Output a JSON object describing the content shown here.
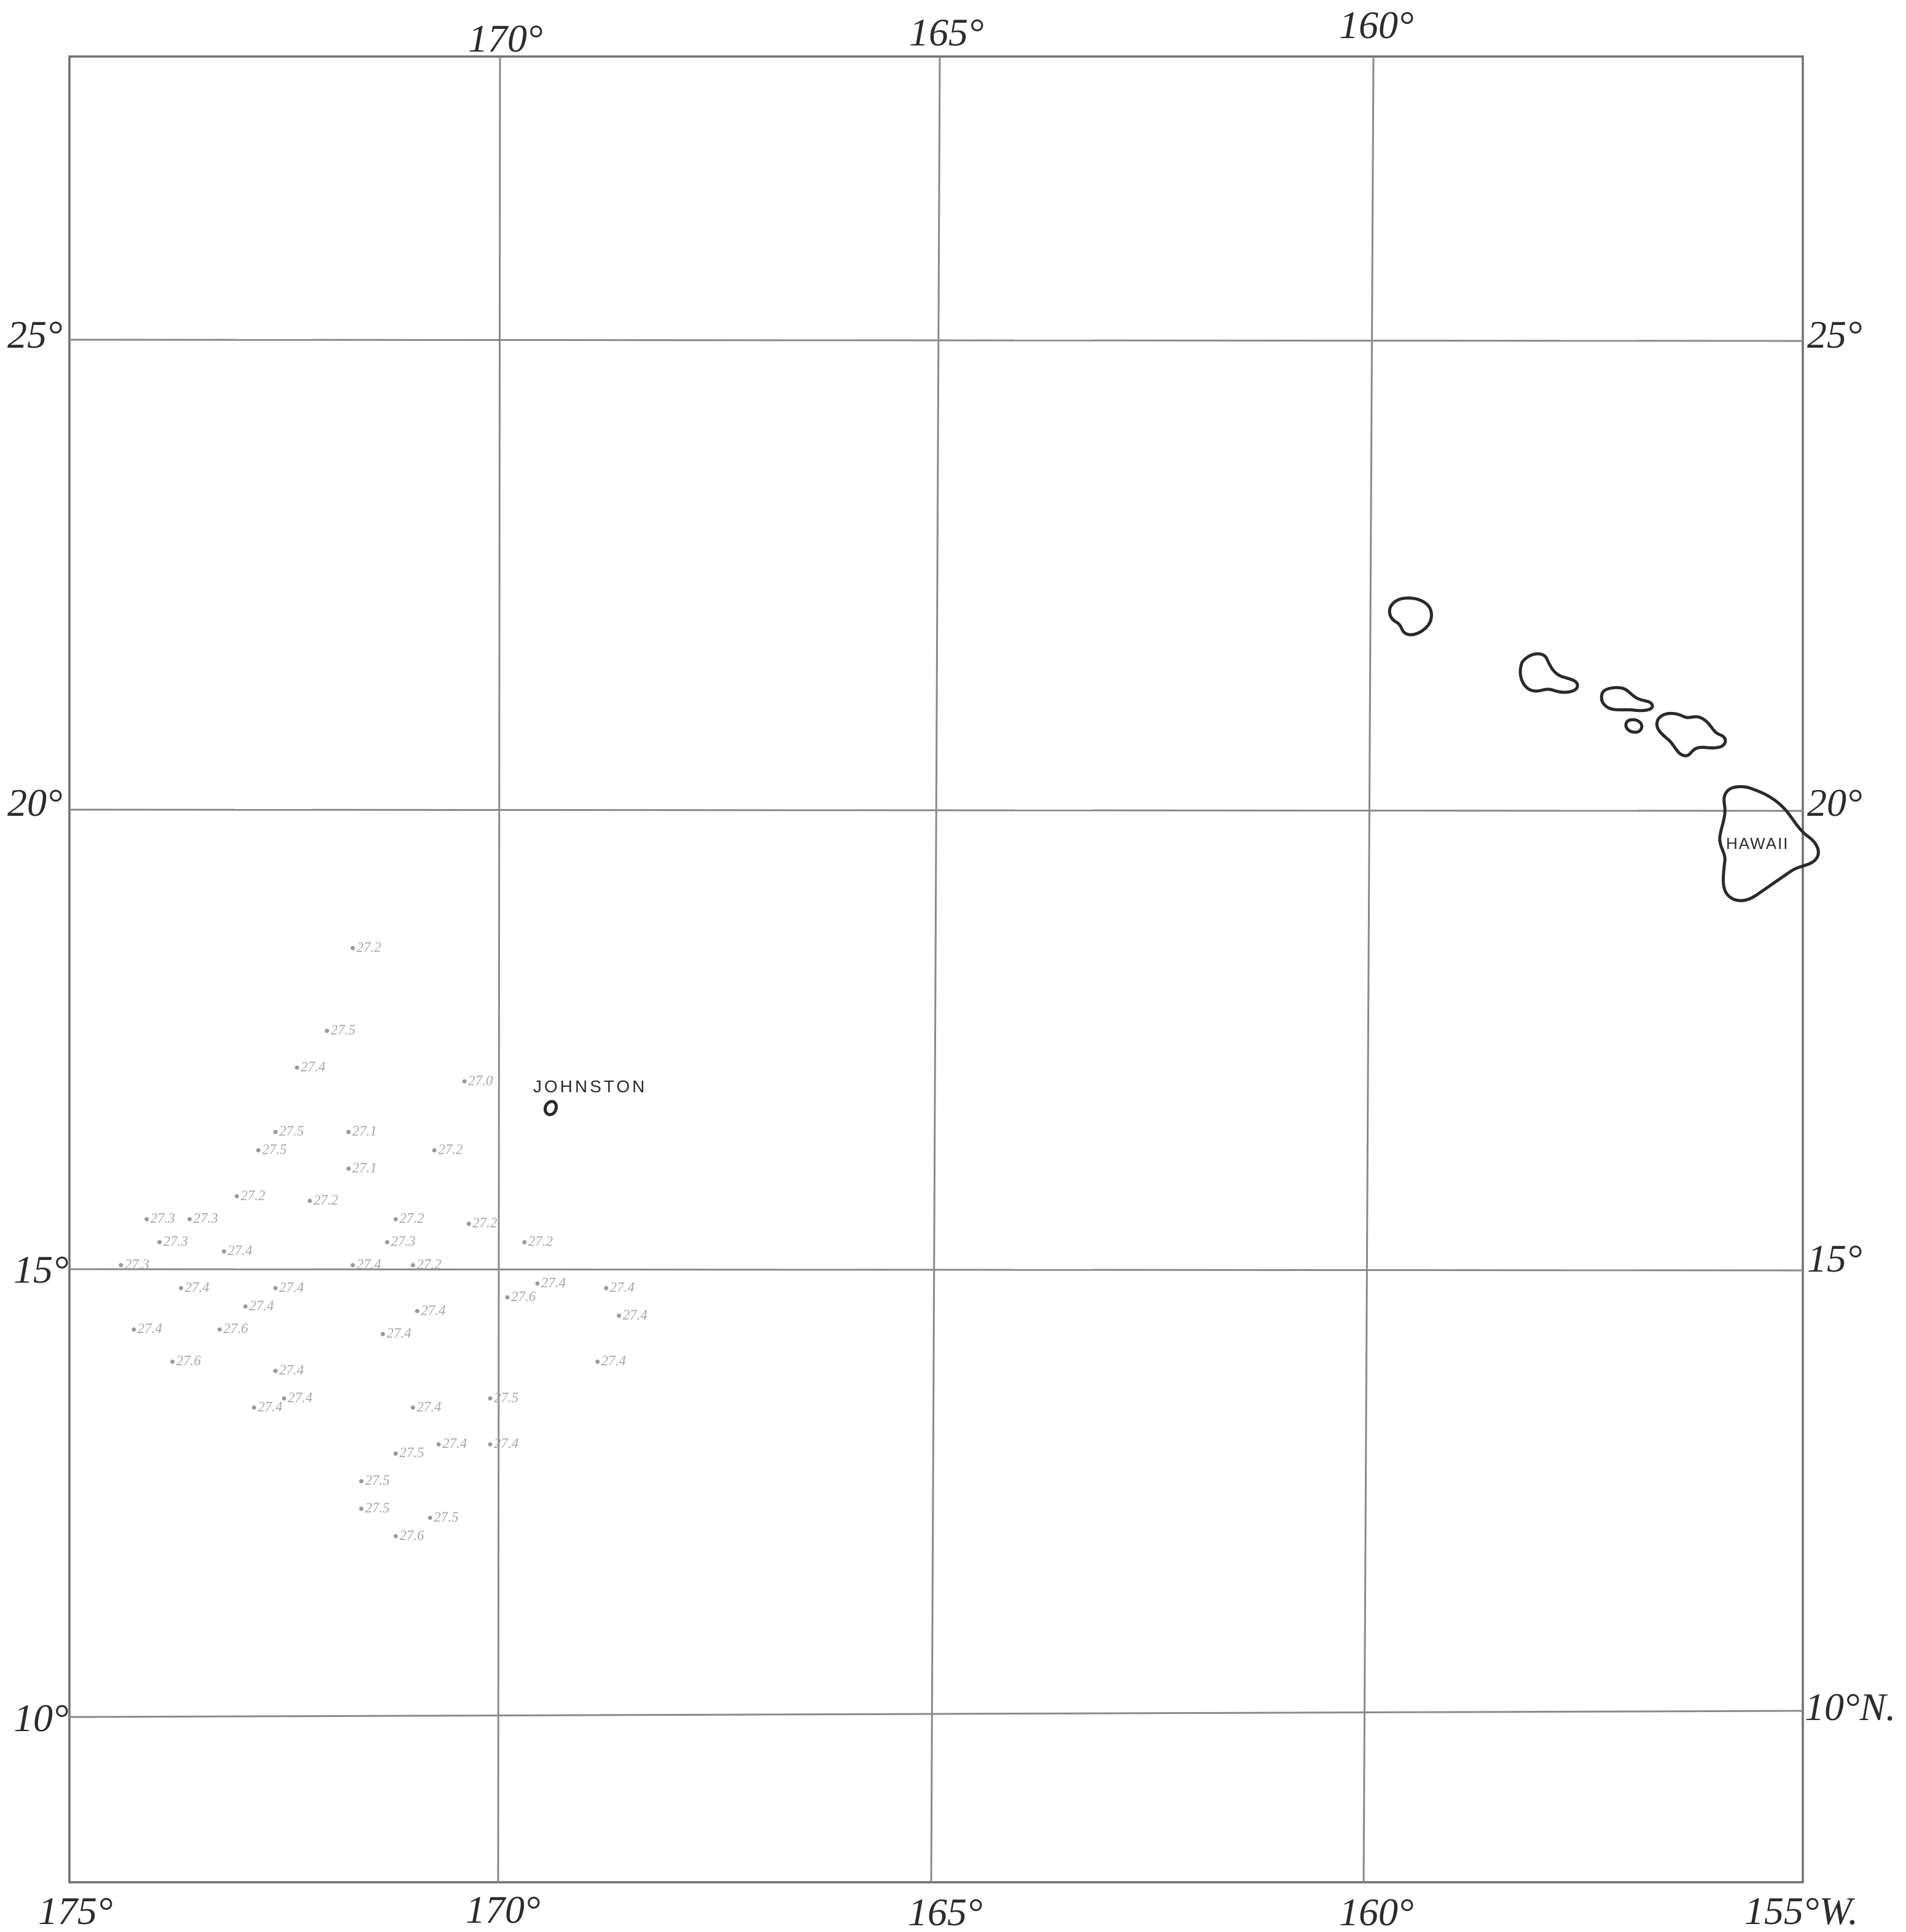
{
  "map": {
    "longitude_labels_top": [
      "170°",
      "165°",
      "160°"
    ],
    "longitude_labels_bottom": [
      "175°",
      "170°",
      "165°",
      "160°",
      "155°W."
    ],
    "latitude_labels_left": [
      "25°",
      "20°",
      "15°",
      "10°"
    ],
    "latitude_labels_right": [
      "25°",
      "20°",
      "15°",
      "10°N."
    ],
    "grid": {
      "longitudes": [
        -175,
        -170,
        -165,
        -160,
        -155
      ],
      "latitudes": [
        25,
        20,
        15,
        10
      ]
    },
    "places": {
      "johnston": {
        "label": "JOHNSTON",
        "lon": -169.5,
        "lat": 16.75
      },
      "hawaii": {
        "label": "HAWAII",
        "lon": -155.5,
        "lat": 19.6
      }
    },
    "islands": [
      "kauai",
      "oahu",
      "molokai",
      "lanai",
      "maui",
      "hawaii",
      "johnston"
    ],
    "observations": [
      {
        "lon": -171.7,
        "lat": 18.5,
        "text": "27.2"
      },
      {
        "lon": -172.0,
        "lat": 17.6,
        "text": "27.5"
      },
      {
        "lon": -172.35,
        "lat": 17.2,
        "text": "27.4"
      },
      {
        "lon": -172.6,
        "lat": 16.5,
        "text": "27.5"
      },
      {
        "lon": -171.75,
        "lat": 16.5,
        "text": "27.1"
      },
      {
        "lon": -172.8,
        "lat": 16.3,
        "text": "27.5"
      },
      {
        "lon": -171.75,
        "lat": 16.1,
        "text": "27.1"
      },
      {
        "lon": -170.75,
        "lat": 16.3,
        "text": "27.2"
      },
      {
        "lon": -170.4,
        "lat": 17.05,
        "text": "27.0"
      },
      {
        "lon": -173.05,
        "lat": 15.8,
        "text": "27.2"
      },
      {
        "lon": -172.2,
        "lat": 15.75,
        "text": "27.2"
      },
      {
        "lon": -173.6,
        "lat": 15.55,
        "text": "27.3"
      },
      {
        "lon": -171.2,
        "lat": 15.55,
        "text": "27.2"
      },
      {
        "lon": -170.35,
        "lat": 15.5,
        "text": "27.2"
      },
      {
        "lon": -173.95,
        "lat": 15.3,
        "text": "27.3"
      },
      {
        "lon": -171.3,
        "lat": 15.3,
        "text": "27.3"
      },
      {
        "lon": -174.4,
        "lat": 15.05,
        "text": "27.3"
      },
      {
        "lon": -173.2,
        "lat": 15.2,
        "text": "27.4"
      },
      {
        "lon": -171.7,
        "lat": 15.05,
        "text": "27.4"
      },
      {
        "lon": -171.0,
        "lat": 15.05,
        "text": "27.2"
      },
      {
        "lon": -169.7,
        "lat": 15.3,
        "text": "27.2"
      },
      {
        "lon": -173.7,
        "lat": 14.8,
        "text": "27.4"
      },
      {
        "lon": -172.6,
        "lat": 14.8,
        "text": "27.4"
      },
      {
        "lon": -169.55,
        "lat": 14.85,
        "text": "27.4"
      },
      {
        "lon": -168.75,
        "lat": 14.8,
        "text": "27.4"
      },
      {
        "lon": -172.95,
        "lat": 14.6,
        "text": "27.4"
      },
      {
        "lon": -170.95,
        "lat": 14.55,
        "text": "27.4"
      },
      {
        "lon": -169.9,
        "lat": 14.7,
        "text": "27.6"
      },
      {
        "lon": -174.25,
        "lat": 14.35,
        "text": "27.4"
      },
      {
        "lon": -173.25,
        "lat": 14.35,
        "text": "27.6"
      },
      {
        "lon": -171.35,
        "lat": 14.3,
        "text": "27.4"
      },
      {
        "lon": -168.6,
        "lat": 14.5,
        "text": "27.4"
      },
      {
        "lon": -173.8,
        "lat": 14.0,
        "text": "27.6"
      },
      {
        "lon": -172.6,
        "lat": 13.9,
        "text": "27.4"
      },
      {
        "lon": -168.85,
        "lat": 14.0,
        "text": "27.4"
      },
      {
        "lon": -172.85,
        "lat": 13.5,
        "text": "27.4"
      },
      {
        "lon": -171.0,
        "lat": 13.5,
        "text": "27.4"
      },
      {
        "lon": -170.1,
        "lat": 13.1,
        "text": "27.4"
      },
      {
        "lon": -170.1,
        "lat": 13.6,
        "text": "27.5"
      },
      {
        "lon": -172.5,
        "lat": 13.6,
        "text": "27.4"
      },
      {
        "lon": -171.2,
        "lat": 13.0,
        "text": "27.5"
      },
      {
        "lon": -170.7,
        "lat": 13.1,
        "text": "27.4"
      },
      {
        "lon": -171.6,
        "lat": 12.7,
        "text": "27.5"
      },
      {
        "lon": -171.6,
        "lat": 12.4,
        "text": "27.5"
      },
      {
        "lon": -171.2,
        "lat": 12.1,
        "text": "27.6"
      },
      {
        "lon": -170.8,
        "lat": 12.3,
        "text": "27.5"
      },
      {
        "lon": -174.1,
        "lat": 15.55,
        "text": "27.3"
      }
    ]
  }
}
